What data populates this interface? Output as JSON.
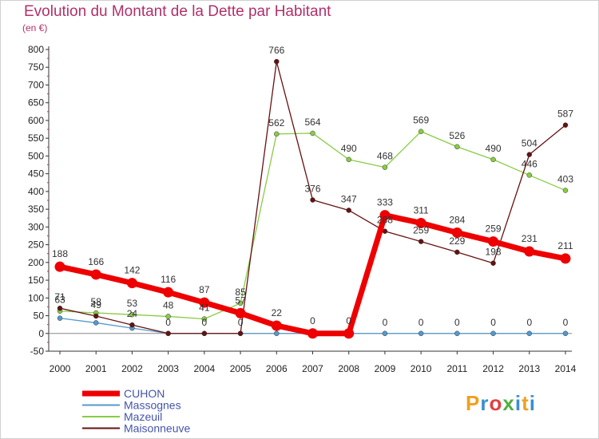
{
  "title": "Evolution du Montant de la Dette par Habitant",
  "subtitle": "(en €)",
  "logo": {
    "text": "Proxiti",
    "letter_colors": [
      "#f0a020",
      "#3a8fd0",
      "#e04040",
      "#50b040",
      "#3a8fd0",
      "#f0a020",
      "#3a8fd0"
    ]
  },
  "chart_data": {
    "type": "line",
    "x": [
      "2000",
      "2001",
      "2002",
      "2003",
      "2004",
      "2005",
      "2006",
      "2007",
      "2008",
      "2009",
      "2010",
      "2011",
      "2012",
      "2013",
      "2014"
    ],
    "ylim": [
      -50,
      800
    ],
    "yticks": [
      -50,
      0,
      50,
      100,
      150,
      200,
      250,
      300,
      350,
      400,
      450,
      500,
      550,
      600,
      650,
      700,
      750,
      800
    ],
    "grid": false,
    "legend_position": "bottom-left",
    "series": [
      {
        "name": "CUHON",
        "color": "#ee0000",
        "values": [
          188,
          166,
          142,
          116,
          87,
          57,
          22,
          0,
          0,
          333,
          311,
          284,
          259,
          231,
          211
        ]
      },
      {
        "name": "Massognes",
        "color": "#5599cc",
        "values": [
          43,
          30,
          15,
          0,
          0,
          0,
          0,
          0,
          0,
          0,
          0,
          0,
          0,
          0,
          0
        ]
      },
      {
        "name": "Mazeuil",
        "color": "#88cc44",
        "values": [
          63,
          58,
          53,
          48,
          41,
          85,
          562,
          564,
          490,
          468,
          569,
          526,
          490,
          446,
          403
        ]
      },
      {
        "name": "Maisonneuve",
        "color": "#661111",
        "values": [
          71,
          49,
          24,
          0,
          0,
          0,
          766,
          376,
          347,
          288,
          259,
          229,
          198,
          504,
          587
        ]
      }
    ],
    "data_labels": {
      "CUHON": [
        "188",
        "166",
        "142",
        "116",
        "87",
        "57",
        "22",
        "0",
        "0",
        "333",
        "311",
        "284",
        "259",
        "231",
        "211"
      ],
      "Massognes": [
        "",
        "",
        "",
        "",
        "",
        "",
        "",
        "",
        "",
        "0",
        "0",
        "0",
        "0",
        "0",
        "0"
      ],
      "Mazeuil": [
        "63",
        "58",
        "53",
        "48",
        "41",
        "85",
        "562",
        "564",
        "490",
        "468",
        "569",
        "526",
        "490",
        "446",
        "403"
      ],
      "Maisonneuve": [
        "71",
        "49",
        "24",
        "0",
        "0",
        "0",
        "766",
        "376",
        "347",
        "288",
        "259",
        "229",
        "198",
        "504",
        "587"
      ]
    }
  }
}
